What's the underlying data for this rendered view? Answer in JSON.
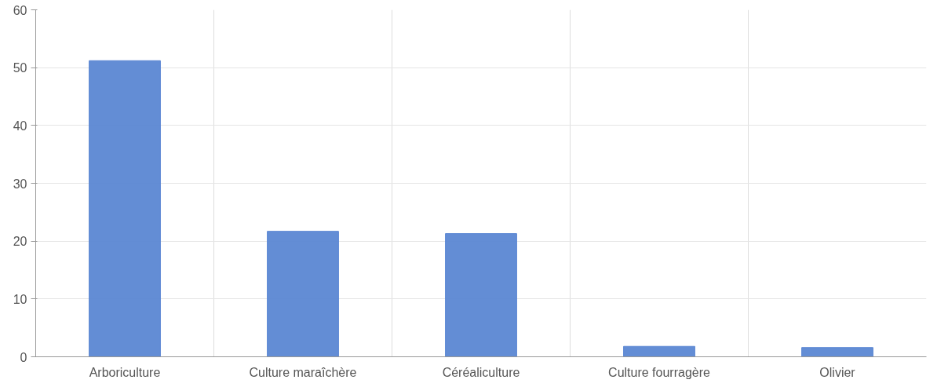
{
  "chart_data": {
    "type": "bar",
    "categories": [
      "Arboriculture",
      "Culture maraîchère",
      "Céréaliculture",
      "Culture fourragère",
      "Olivier"
    ],
    "values": [
      51.2,
      21.7,
      21.3,
      1.8,
      1.6
    ],
    "color": "#5b87d3",
    "ylim": [
      0,
      60
    ],
    "yticks": [
      0,
      10,
      20,
      30,
      40,
      50,
      60
    ],
    "grid": true
  }
}
